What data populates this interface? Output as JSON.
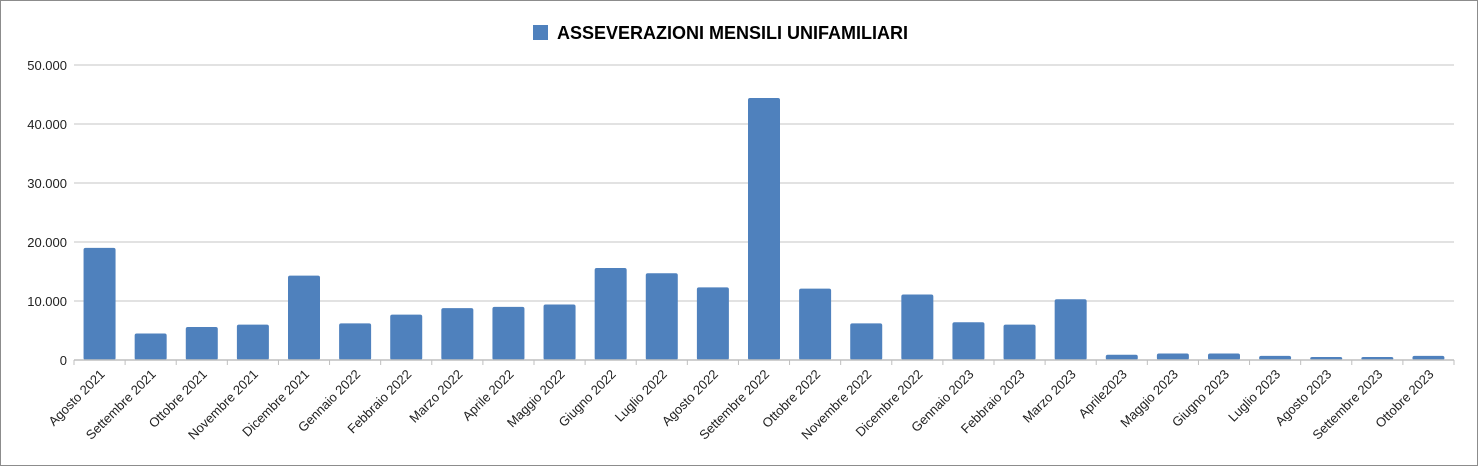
{
  "chart_data": {
    "type": "bar",
    "title": "",
    "xlabel": "",
    "ylabel": "",
    "ylim": [
      0,
      50000
    ],
    "yticks": [
      0,
      10000,
      20000,
      30000,
      40000,
      50000
    ],
    "ytick_labels": [
      "0",
      "10.000",
      "20.000",
      "30.000",
      "40.000",
      "50.000"
    ],
    "grid": true,
    "legend": {
      "placement": "top-center",
      "entries": [
        "ASSEVERAZIONI MENSILI UNIFAMILIARI"
      ]
    },
    "categories": [
      "Agosto 2021",
      "Settembre 2021",
      "Ottobre 2021",
      "Novembre 2021",
      "Dicembre 2021",
      "Gennaio 2022",
      "Febbraio 2022",
      "Marzo 2022",
      "Aprile 2022",
      "Maggio 2022",
      "Giugno 2022",
      "Luglio 2022",
      "Agosto 2022",
      "Settembre 2022",
      "Ottobre 2022",
      "Novembre 2022",
      "Dicembre 2022",
      "Gennaio 2023",
      "Febbraio 2023",
      "Marzo 2023",
      "Aprile2023",
      "Maggio 2023",
      "Giugno 2023",
      "Luglio 2023",
      "Agosto 2023",
      "Settembre 2023",
      "Ottobre 2023"
    ],
    "series": [
      {
        "name": "ASSEVERAZIONI MENSILI UNIFAMILIARI",
        "color": "#4f81bd",
        "values": [
          19000,
          4500,
          5600,
          6000,
          14300,
          6200,
          7700,
          8800,
          9000,
          9400,
          15600,
          14700,
          12300,
          44400,
          12100,
          6200,
          11100,
          6400,
          6000,
          10300,
          900,
          1100,
          1100,
          700,
          500,
          500,
          700
        ]
      }
    ]
  }
}
